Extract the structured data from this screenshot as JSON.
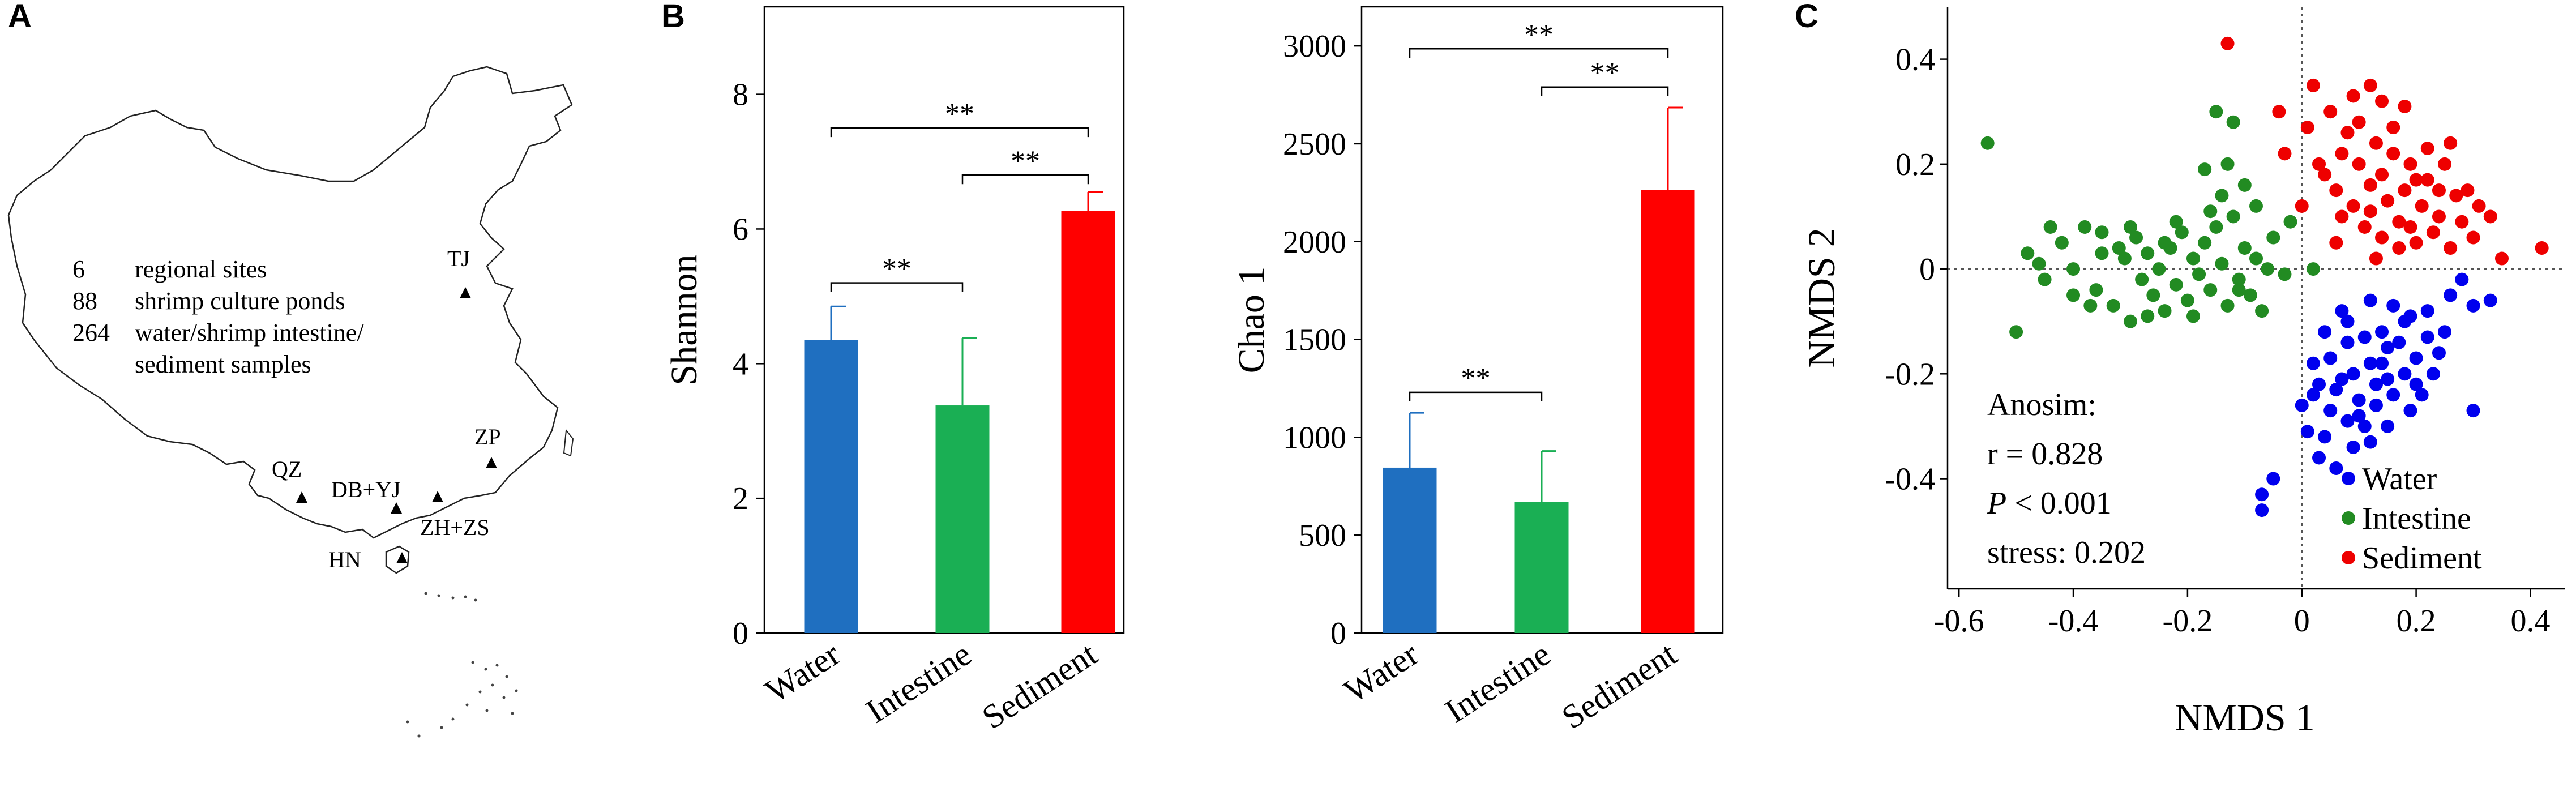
{
  "panel_labels": {
    "a": "A",
    "b": "B",
    "c": "C"
  },
  "map": {
    "summary_lines": [
      {
        "num": "6",
        "text": "regional sites"
      },
      {
        "num": "88",
        "text": "shrimp culture ponds"
      },
      {
        "num": "264",
        "text": "water/shrimp intestine/"
      },
      {
        "num": "",
        "text": "sediment samples"
      }
    ],
    "sites": [
      "TJ",
      "ZP",
      "QZ",
      "DB+YJ",
      "ZH+ZS",
      "HN"
    ]
  },
  "colors": {
    "water": "#1f6fc0",
    "intestine": "#1aaf54",
    "sediment": "#ff0000",
    "water_point": "#0000ee",
    "intestine_point": "#228b22",
    "sediment_point": "#ee0000"
  },
  "chart_data": [
    {
      "type": "bar",
      "categories": [
        "Water",
        "Intestine",
        "Sediment"
      ],
      "values": [
        4.35,
        3.38,
        6.27
      ],
      "errors": [
        0.5,
        1.0,
        0.28
      ],
      "ylabel": "Shannon",
      "ylim": [
        0,
        9.3
      ],
      "yticks": [
        0,
        2,
        4,
        6,
        8
      ],
      "significance": [
        {
          "from": 0,
          "to": 2,
          "label": "**",
          "y": 7.5
        },
        {
          "from": 1,
          "to": 2,
          "label": "**",
          "y": 6.8
        },
        {
          "from": 0,
          "to": 1,
          "label": "**",
          "y": 5.2
        }
      ]
    },
    {
      "type": "bar",
      "categories": [
        "Water",
        "Intestine",
        "Sediment"
      ],
      "values": [
        845,
        670,
        2265
      ],
      "errors": [
        280,
        260,
        420
      ],
      "ylabel": "Chao 1",
      "ylim": [
        0,
        3200
      ],
      "yticks": [
        0,
        500,
        1000,
        1500,
        2000,
        2500,
        3000
      ],
      "significance": [
        {
          "from": 0,
          "to": 2,
          "label": "**",
          "y": 2985
        },
        {
          "from": 1,
          "to": 2,
          "label": "**",
          "y": 2790
        },
        {
          "from": 0,
          "to": 1,
          "label": "**",
          "y": 1230
        }
      ]
    },
    {
      "type": "scatter",
      "xlabel": "NMDS 1",
      "ylabel": "NMDS 2",
      "xlim": [
        -0.62,
        0.46
      ],
      "ylim": [
        -0.61,
        0.5
      ],
      "xticks": [
        -0.6,
        -0.4,
        -0.2,
        0,
        0.2,
        0.4
      ],
      "xtick_labels": [
        "-0.6",
        "-0.4",
        "-0.2",
        "0",
        "0.2",
        "0.4"
      ],
      "yticks": [
        -0.4,
        -0.2,
        0,
        0.2,
        0.4
      ],
      "ytick_labels": [
        "-0.4",
        "-0.2",
        "0",
        "0.2",
        "0.4"
      ],
      "annotation": {
        "line1": "Anosim:",
        "line2": "r = 0.828",
        "line3_italic": "P",
        "line3_rest": " < 0.001",
        "line4": "stress: 0.202"
      },
      "legend": [
        "Water",
        "Intestine",
        "Sediment"
      ],
      "legend_position": "bottom-right",
      "series": [
        {
          "name": "Water",
          "points": [
            [
              0.09,
              -0.2
            ],
            [
              0.12,
              -0.18
            ],
            [
              0.06,
              -0.23
            ],
            [
              0.15,
              -0.15
            ],
            [
              0.1,
              -0.25
            ],
            [
              0.03,
              -0.22
            ],
            [
              0.18,
              -0.2
            ],
            [
              0.14,
              -0.12
            ],
            [
              0.08,
              -0.14
            ],
            [
              0.2,
              -0.17
            ],
            [
              0.05,
              -0.27
            ],
            [
              0.11,
              -0.3
            ],
            [
              0.22,
              -0.13
            ],
            [
              0.16,
              -0.24
            ],
            [
              0.02,
              -0.18
            ],
            [
              0.07,
              -0.08
            ],
            [
              0.12,
              -0.06
            ],
            [
              0.19,
              -0.09
            ],
            [
              0.25,
              -0.12
            ],
            [
              0.23,
              -0.2
            ],
            [
              0.13,
              -0.22
            ],
            [
              0.04,
              -0.32
            ],
            [
              0.09,
              -0.34
            ],
            [
              0.15,
              -0.3
            ],
            [
              0.0,
              -0.26
            ],
            [
              0.01,
              -0.31
            ],
            [
              0.18,
              -0.1
            ],
            [
              0.21,
              -0.24
            ],
            [
              0.26,
              -0.05
            ],
            [
              0.28,
              -0.02
            ],
            [
              0.3,
              -0.07
            ],
            [
              0.33,
              -0.06
            ],
            [
              0.3,
              -0.27
            ],
            [
              0.06,
              -0.38
            ],
            [
              0.03,
              -0.36
            ],
            [
              -0.05,
              -0.4
            ],
            [
              -0.07,
              -0.43
            ],
            [
              -0.07,
              -0.46
            ],
            [
              0.08,
              -0.1
            ],
            [
              0.11,
              -0.13
            ],
            [
              0.14,
              -0.18
            ],
            [
              0.17,
              -0.14
            ],
            [
              0.05,
              -0.17
            ],
            [
              0.1,
              -0.28
            ],
            [
              0.13,
              -0.26
            ],
            [
              0.2,
              -0.22
            ],
            [
              0.24,
              -0.16
            ],
            [
              0.16,
              -0.07
            ],
            [
              0.22,
              -0.08
            ],
            [
              0.07,
              -0.21
            ],
            [
              0.02,
              -0.24
            ],
            [
              0.12,
              -0.33
            ],
            [
              0.08,
              -0.29
            ],
            [
              0.19,
              -0.27
            ],
            [
              0.04,
              -0.12
            ],
            [
              0.15,
              -0.21
            ]
          ]
        },
        {
          "name": "Intestine",
          "points": [
            [
              -0.55,
              0.24
            ],
            [
              -0.5,
              -0.12
            ],
            [
              -0.48,
              0.03
            ],
            [
              -0.45,
              -0.02
            ],
            [
              -0.42,
              0.05
            ],
            [
              -0.4,
              0.0
            ],
            [
              -0.38,
              0.08
            ],
            [
              -0.36,
              -0.04
            ],
            [
              -0.35,
              0.03
            ],
            [
              -0.33,
              -0.07
            ],
            [
              -0.31,
              0.02
            ],
            [
              -0.3,
              -0.1
            ],
            [
              -0.29,
              0.06
            ],
            [
              -0.28,
              -0.02
            ],
            [
              -0.27,
              0.03
            ],
            [
              -0.26,
              -0.05
            ],
            [
              -0.25,
              0.0
            ],
            [
              -0.24,
              -0.08
            ],
            [
              -0.23,
              0.04
            ],
            [
              -0.22,
              -0.03
            ],
            [
              -0.21,
              0.07
            ],
            [
              -0.2,
              -0.06
            ],
            [
              -0.19,
              0.02
            ],
            [
              -0.18,
              -0.01
            ],
            [
              -0.17,
              0.05
            ],
            [
              -0.16,
              -0.04
            ],
            [
              -0.15,
              0.08
            ],
            [
              -0.14,
              0.01
            ],
            [
              -0.13,
              -0.07
            ],
            [
              -0.12,
              0.1
            ],
            [
              -0.11,
              -0.02
            ],
            [
              -0.1,
              0.04
            ],
            [
              -0.09,
              -0.05
            ],
            [
              -0.08,
              0.02
            ],
            [
              -0.07,
              -0.08
            ],
            [
              -0.06,
              0.0
            ],
            [
              -0.05,
              0.06
            ],
            [
              -0.03,
              -0.01
            ],
            [
              -0.02,
              0.09
            ],
            [
              0.02,
              0.0
            ],
            [
              -0.13,
              0.2
            ],
            [
              -0.12,
              0.28
            ],
            [
              -0.15,
              0.3
            ],
            [
              -0.17,
              0.19
            ],
            [
              -0.14,
              0.14
            ],
            [
              -0.08,
              0.12
            ],
            [
              -0.1,
              0.16
            ],
            [
              -0.44,
              0.08
            ],
            [
              -0.37,
              -0.07
            ],
            [
              -0.32,
              0.04
            ],
            [
              -0.27,
              -0.09
            ],
            [
              -0.22,
              0.09
            ],
            [
              -0.19,
              -0.09
            ],
            [
              -0.16,
              0.11
            ],
            [
              -0.11,
              -0.04
            ],
            [
              -0.35,
              0.07
            ],
            [
              -0.4,
              -0.05
            ],
            [
              -0.46,
              0.01
            ],
            [
              -0.3,
              0.08
            ],
            [
              -0.24,
              0.05
            ]
          ]
        },
        {
          "name": "Sediment",
          "points": [
            [
              -0.13,
              0.43
            ],
            [
              -0.04,
              0.3
            ],
            [
              0.02,
              0.35
            ],
            [
              0.05,
              0.3
            ],
            [
              0.09,
              0.33
            ],
            [
              0.12,
              0.35
            ],
            [
              0.14,
              0.32
            ],
            [
              0.18,
              0.31
            ],
            [
              0.03,
              0.2
            ],
            [
              0.07,
              0.22
            ],
            [
              0.1,
              0.2
            ],
            [
              0.13,
              0.24
            ],
            [
              0.16,
              0.22
            ],
            [
              0.19,
              0.2
            ],
            [
              0.22,
              0.23
            ],
            [
              0.25,
              0.2
            ],
            [
              0.06,
              0.15
            ],
            [
              0.09,
              0.12
            ],
            [
              0.12,
              0.16
            ],
            [
              0.15,
              0.13
            ],
            [
              0.18,
              0.15
            ],
            [
              0.21,
              0.12
            ],
            [
              0.24,
              0.1
            ],
            [
              0.27,
              0.14
            ],
            [
              0.11,
              0.08
            ],
            [
              0.14,
              0.06
            ],
            [
              0.17,
              0.09
            ],
            [
              0.2,
              0.05
            ],
            [
              0.23,
              0.07
            ],
            [
              0.26,
              0.04
            ],
            [
              0.3,
              0.06
            ],
            [
              0.33,
              0.1
            ],
            [
              0.35,
              0.02
            ],
            [
              0.42,
              0.04
            ],
            [
              0.29,
              0.15
            ],
            [
              0.08,
              0.26
            ],
            [
              0.04,
              0.18
            ],
            [
              0.0,
              0.12
            ],
            [
              0.01,
              0.27
            ],
            [
              0.16,
              0.27
            ],
            [
              0.2,
              0.17
            ],
            [
              0.12,
              0.11
            ],
            [
              0.07,
              0.1
            ],
            [
              0.22,
              0.17
            ],
            [
              0.26,
              0.24
            ],
            [
              0.28,
              0.09
            ],
            [
              0.1,
              0.28
            ],
            [
              0.14,
              0.18
            ],
            [
              -0.03,
              0.22
            ],
            [
              0.19,
              0.08
            ],
            [
              0.24,
              0.15
            ],
            [
              0.06,
              0.05
            ],
            [
              0.17,
              0.04
            ],
            [
              0.13,
              0.02
            ],
            [
              0.31,
              0.12
            ]
          ]
        }
      ]
    }
  ]
}
